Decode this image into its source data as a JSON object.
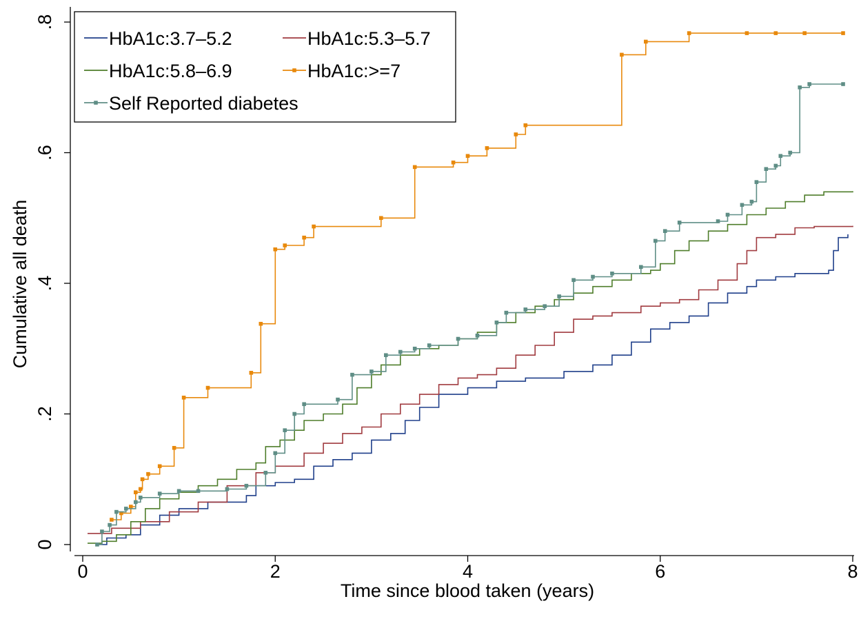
{
  "chart_data": {
    "type": "line",
    "title": "",
    "xlabel": "Time since blood taken (years)",
    "ylabel": "Cumulative all death",
    "xlim": [
      0,
      8
    ],
    "ylim": [
      0,
      0.8
    ],
    "x_ticks": [
      0,
      2,
      4,
      6,
      8
    ],
    "x_tick_labels": [
      "0",
      "2",
      "4",
      "6",
      "8"
    ],
    "y_ticks": [
      0,
      0.2,
      0.4,
      0.6,
      0.8
    ],
    "y_tick_labels": [
      "0",
      ".2",
      ".4",
      ".6",
      ".8"
    ],
    "grid": false,
    "legend_position": "top-left",
    "series": [
      {
        "name": "HbA1c:3.7–5.2",
        "color": "#1f3f8a",
        "markers": false,
        "points": [
          [
            0.15,
            0.0
          ],
          [
            0.25,
            0.01
          ],
          [
            0.45,
            0.015
          ],
          [
            0.6,
            0.03
          ],
          [
            0.8,
            0.045
          ],
          [
            1.0,
            0.055
          ],
          [
            1.3,
            0.065
          ],
          [
            1.7,
            0.075
          ],
          [
            1.8,
            0.09
          ],
          [
            2.0,
            0.095
          ],
          [
            2.2,
            0.1
          ],
          [
            2.4,
            0.12
          ],
          [
            2.6,
            0.13
          ],
          [
            2.8,
            0.14
          ],
          [
            3.0,
            0.16
          ],
          [
            3.2,
            0.17
          ],
          [
            3.35,
            0.19
          ],
          [
            3.5,
            0.21
          ],
          [
            3.7,
            0.23
          ],
          [
            4.0,
            0.24
          ],
          [
            4.3,
            0.25
          ],
          [
            4.6,
            0.255
          ],
          [
            5.0,
            0.265
          ],
          [
            5.3,
            0.275
          ],
          [
            5.5,
            0.29
          ],
          [
            5.7,
            0.31
          ],
          [
            5.9,
            0.33
          ],
          [
            6.1,
            0.34
          ],
          [
            6.3,
            0.35
          ],
          [
            6.5,
            0.37
          ],
          [
            6.7,
            0.385
          ],
          [
            6.9,
            0.395
          ],
          [
            7.0,
            0.405
          ],
          [
            7.2,
            0.41
          ],
          [
            7.4,
            0.415
          ],
          [
            7.6,
            0.415
          ],
          [
            7.75,
            0.42
          ],
          [
            7.8,
            0.45
          ],
          [
            7.85,
            0.47
          ],
          [
            7.95,
            0.475
          ]
        ]
      },
      {
        "name": "HbA1c:5.3–5.7",
        "color": "#a03a3f",
        "markers": false,
        "points": [
          [
            0.05,
            0.017
          ],
          [
            0.3,
            0.025
          ],
          [
            0.6,
            0.035
          ],
          [
            0.9,
            0.05
          ],
          [
            1.2,
            0.065
          ],
          [
            1.5,
            0.09
          ],
          [
            1.8,
            0.11
          ],
          [
            2.0,
            0.12
          ],
          [
            2.3,
            0.14
          ],
          [
            2.5,
            0.155
          ],
          [
            2.7,
            0.17
          ],
          [
            2.9,
            0.18
          ],
          [
            3.1,
            0.2
          ],
          [
            3.3,
            0.215
          ],
          [
            3.5,
            0.23
          ],
          [
            3.7,
            0.245
          ],
          [
            3.9,
            0.255
          ],
          [
            4.1,
            0.26
          ],
          [
            4.3,
            0.27
          ],
          [
            4.5,
            0.29
          ],
          [
            4.7,
            0.305
          ],
          [
            4.9,
            0.325
          ],
          [
            5.1,
            0.345
          ],
          [
            5.3,
            0.35
          ],
          [
            5.5,
            0.355
          ],
          [
            5.8,
            0.365
          ],
          [
            6.0,
            0.37
          ],
          [
            6.2,
            0.375
          ],
          [
            6.4,
            0.39
          ],
          [
            6.6,
            0.405
          ],
          [
            6.8,
            0.43
          ],
          [
            6.9,
            0.45
          ],
          [
            7.0,
            0.47
          ],
          [
            7.2,
            0.475
          ],
          [
            7.4,
            0.485
          ],
          [
            7.6,
            0.487
          ],
          [
            8.0,
            0.488
          ]
        ]
      },
      {
        "name": "HbA1c:5.8–6.9",
        "color": "#4e7d2a",
        "markers": false,
        "points": [
          [
            0.05,
            0.002
          ],
          [
            0.2,
            0.005
          ],
          [
            0.35,
            0.015
          ],
          [
            0.5,
            0.035
          ],
          [
            0.65,
            0.055
          ],
          [
            0.8,
            0.07
          ],
          [
            1.0,
            0.08
          ],
          [
            1.2,
            0.09
          ],
          [
            1.4,
            0.1
          ],
          [
            1.6,
            0.115
          ],
          [
            1.8,
            0.125
          ],
          [
            1.9,
            0.15
          ],
          [
            2.05,
            0.16
          ],
          [
            2.2,
            0.175
          ],
          [
            2.3,
            0.19
          ],
          [
            2.5,
            0.2
          ],
          [
            2.7,
            0.215
          ],
          [
            2.85,
            0.24
          ],
          [
            3.0,
            0.26
          ],
          [
            3.1,
            0.275
          ],
          [
            3.3,
            0.29
          ],
          [
            3.5,
            0.3
          ],
          [
            3.7,
            0.305
          ],
          [
            3.9,
            0.315
          ],
          [
            4.1,
            0.325
          ],
          [
            4.3,
            0.34
          ],
          [
            4.5,
            0.355
          ],
          [
            4.7,
            0.365
          ],
          [
            4.9,
            0.375
          ],
          [
            5.1,
            0.385
          ],
          [
            5.3,
            0.395
          ],
          [
            5.5,
            0.405
          ],
          [
            5.7,
            0.415
          ],
          [
            5.9,
            0.42
          ],
          [
            6.0,
            0.43
          ],
          [
            6.15,
            0.45
          ],
          [
            6.3,
            0.465
          ],
          [
            6.5,
            0.48
          ],
          [
            6.7,
            0.49
          ],
          [
            6.9,
            0.505
          ],
          [
            7.1,
            0.515
          ],
          [
            7.3,
            0.525
          ],
          [
            7.5,
            0.535
          ],
          [
            7.7,
            0.54
          ],
          [
            8.0,
            0.541
          ]
        ]
      },
      {
        "name": "HbA1c:>=7",
        "color": "#e8890c",
        "markers": true,
        "points": [
          [
            0.3,
            0.038
          ],
          [
            0.4,
            0.048
          ],
          [
            0.5,
            0.058
          ],
          [
            0.55,
            0.08
          ],
          [
            0.6,
            0.085
          ],
          [
            0.62,
            0.1
          ],
          [
            0.68,
            0.108
          ],
          [
            0.8,
            0.12
          ],
          [
            0.95,
            0.148
          ],
          [
            1.05,
            0.225
          ],
          [
            1.3,
            0.24
          ],
          [
            1.75,
            0.263
          ],
          [
            1.85,
            0.338
          ],
          [
            2.0,
            0.452
          ],
          [
            2.1,
            0.458
          ],
          [
            2.3,
            0.47
          ],
          [
            2.4,
            0.487
          ],
          [
            3.1,
            0.5
          ],
          [
            3.45,
            0.578
          ],
          [
            3.85,
            0.585
          ],
          [
            4.0,
            0.595
          ],
          [
            4.2,
            0.607
          ],
          [
            4.5,
            0.628
          ],
          [
            4.6,
            0.642
          ],
          [
            5.6,
            0.75
          ],
          [
            5.85,
            0.77
          ],
          [
            6.3,
            0.783
          ],
          [
            6.9,
            0.783
          ],
          [
            7.2,
            0.783
          ],
          [
            7.5,
            0.783
          ],
          [
            7.9,
            0.783
          ]
        ]
      },
      {
        "name": "Self Reported diabetes",
        "color": "#5f8e86",
        "markers": true,
        "points": [
          [
            0.15,
            0.0
          ],
          [
            0.2,
            0.02
          ],
          [
            0.28,
            0.03
          ],
          [
            0.35,
            0.05
          ],
          [
            0.45,
            0.055
          ],
          [
            0.55,
            0.065
          ],
          [
            0.6,
            0.072
          ],
          [
            0.8,
            0.078
          ],
          [
            1.0,
            0.082
          ],
          [
            1.2,
            0.082
          ],
          [
            1.5,
            0.085
          ],
          [
            1.7,
            0.09
          ],
          [
            1.9,
            0.11
          ],
          [
            2.0,
            0.14
          ],
          [
            2.1,
            0.175
          ],
          [
            2.2,
            0.2
          ],
          [
            2.3,
            0.215
          ],
          [
            2.65,
            0.222
          ],
          [
            2.8,
            0.26
          ],
          [
            3.0,
            0.265
          ],
          [
            3.15,
            0.29
          ],
          [
            3.3,
            0.295
          ],
          [
            3.45,
            0.3
          ],
          [
            3.6,
            0.305
          ],
          [
            3.9,
            0.315
          ],
          [
            4.1,
            0.32
          ],
          [
            4.3,
            0.34
          ],
          [
            4.4,
            0.355
          ],
          [
            4.6,
            0.36
          ],
          [
            4.8,
            0.365
          ],
          [
            4.95,
            0.38
          ],
          [
            5.1,
            0.405
          ],
          [
            5.3,
            0.41
          ],
          [
            5.5,
            0.415
          ],
          [
            5.8,
            0.425
          ],
          [
            5.95,
            0.465
          ],
          [
            6.05,
            0.48
          ],
          [
            6.2,
            0.493
          ],
          [
            6.6,
            0.495
          ],
          [
            6.7,
            0.505
          ],
          [
            6.85,
            0.52
          ],
          [
            6.95,
            0.525
          ],
          [
            7.0,
            0.555
          ],
          [
            7.1,
            0.575
          ],
          [
            7.2,
            0.58
          ],
          [
            7.25,
            0.595
          ],
          [
            7.35,
            0.6
          ],
          [
            7.45,
            0.7
          ],
          [
            7.55,
            0.705
          ],
          [
            7.9,
            0.705
          ]
        ]
      }
    ]
  }
}
